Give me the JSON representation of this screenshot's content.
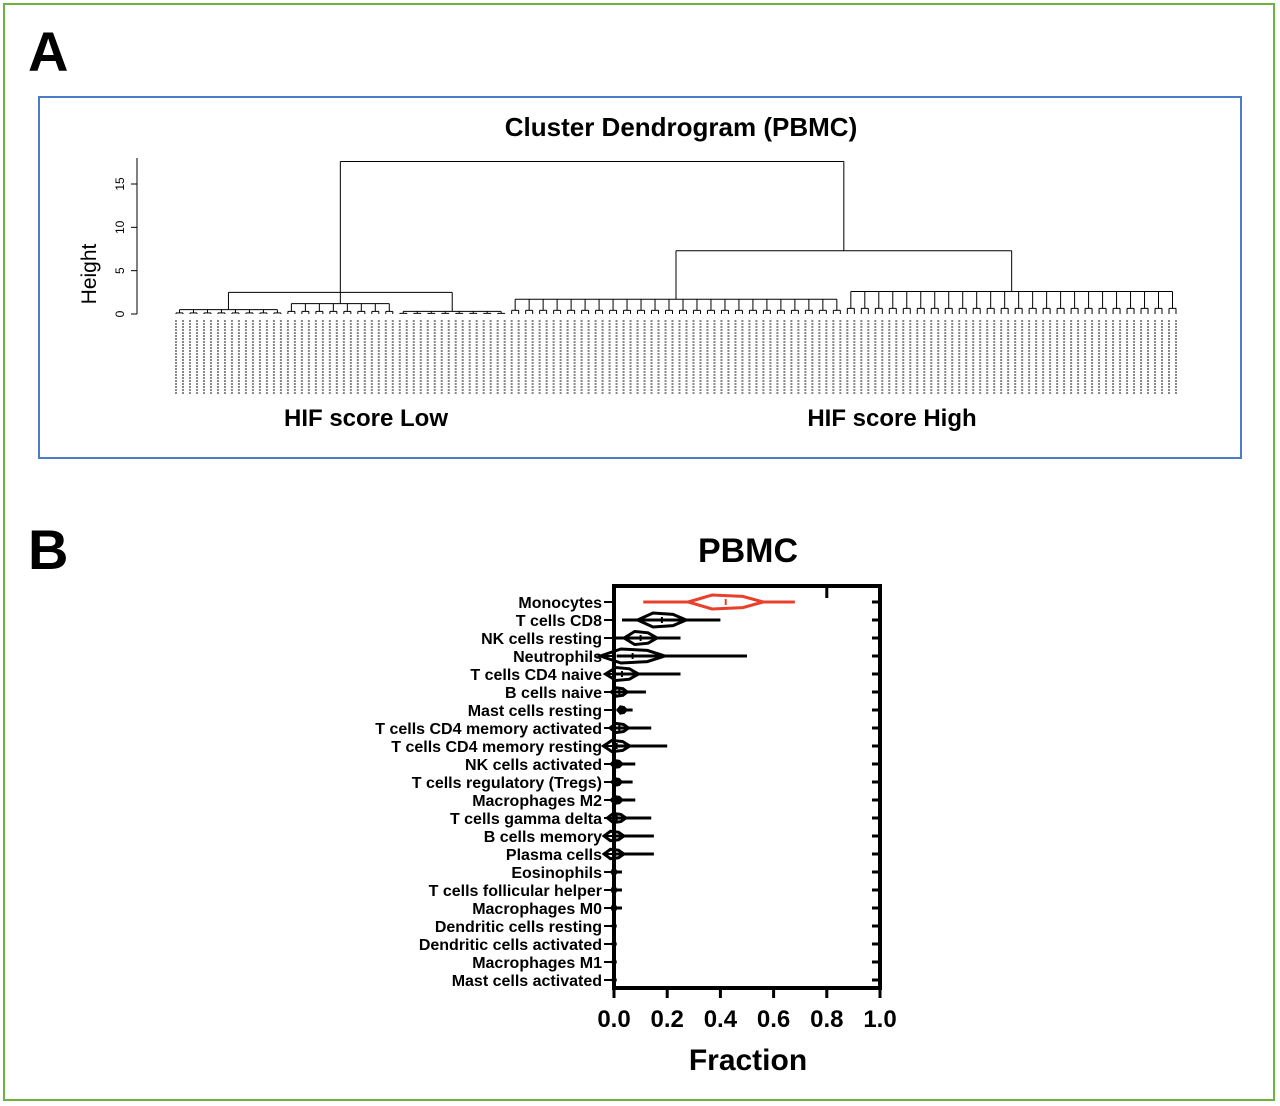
{
  "panels": {
    "a_label": "A",
    "b_label": "B"
  },
  "colors": {
    "frame": "#6db33f",
    "panel_a_border": "#4a7cc7",
    "highlight": "#e8402a",
    "ink": "#000000"
  },
  "chart_data": [
    {
      "type": "dendrogram",
      "title": "Cluster Dendrogram (PBMC)",
      "ylabel": "Height",
      "ylim": [
        0,
        18
      ],
      "yticks": [
        0,
        5,
        10,
        15
      ],
      "root_height": 17.6,
      "groups": [
        {
          "name": "HIF score Low",
          "leaf_count": 48,
          "merge_height": 2.5,
          "subclusters": [
            {
              "leaf_count": 16,
              "merge_height": 0.5
            },
            {
              "leaf_count": 16,
              "merge_height": 1.2
            },
            {
              "leaf_count": 16,
              "merge_height": 0.3
            }
          ]
        },
        {
          "name": "HIF score High",
          "leaf_count": 96,
          "merge_height": 7.3,
          "subclusters": [
            {
              "leaf_count": 48,
              "merge_height": 1.7
            },
            {
              "leaf_count": 48,
              "merge_height": 2.6
            }
          ]
        }
      ],
      "group_labels": [
        "HIF score Low",
        "HIF score High"
      ]
    },
    {
      "type": "violin",
      "title": "PBMC",
      "xlabel": "Fraction",
      "xlim": [
        0,
        1
      ],
      "xticks": [
        "0.0",
        "0.2",
        "0.4",
        "0.6",
        "0.8",
        "1.0"
      ],
      "categories": [
        "Monocytes",
        "T cells CD8",
        "NK cells resting",
        "Neutrophils",
        "T cells CD4 naive",
        "B cells naive",
        "Mast cells resting",
        "T cells CD4 memory activated",
        "T cells CD4 memory resting",
        "NK cells activated",
        "T cells regulatory (Tregs)",
        "Macrophages M2",
        "T cells gamma delta",
        "B cells memory",
        "Plasma cells",
        "Eosinophils",
        "T cells follicular helper",
        "Macrophages M0",
        "Dendritic cells resting",
        "Dendritic cells activated",
        "Macrophages M1",
        "Mast cells activated"
      ],
      "series": [
        {
          "min": 0.11,
          "max": 0.68,
          "median": 0.42,
          "highlight": true
        },
        {
          "min": 0.03,
          "max": 0.4,
          "median": 0.18
        },
        {
          "min": 0.0,
          "max": 0.25,
          "median": 0.1
        },
        {
          "min": 0.01,
          "max": 0.5,
          "median": 0.07
        },
        {
          "min": 0.0,
          "max": 0.25,
          "median": 0.03
        },
        {
          "min": 0.0,
          "max": 0.12,
          "median": 0.02
        },
        {
          "min": 0.01,
          "max": 0.07,
          "median": 0.03
        },
        {
          "min": 0.0,
          "max": 0.14,
          "median": 0.02
        },
        {
          "min": 0.0,
          "max": 0.2,
          "median": 0.01
        },
        {
          "min": 0.0,
          "max": 0.08,
          "median": 0.01
        },
        {
          "min": 0.0,
          "max": 0.07,
          "median": 0.01
        },
        {
          "min": 0.0,
          "max": 0.08,
          "median": 0.01
        },
        {
          "min": 0.0,
          "max": 0.14,
          "median": 0.01
        },
        {
          "min": 0.0,
          "max": 0.15,
          "median": 0.0
        },
        {
          "min": 0.0,
          "max": 0.15,
          "median": 0.0
        },
        {
          "min": 0.0,
          "max": 0.03,
          "median": 0.0
        },
        {
          "min": 0.0,
          "max": 0.03,
          "median": 0.0
        },
        {
          "min": 0.0,
          "max": 0.03,
          "median": 0.0
        },
        {
          "min": 0.0,
          "max": 0.01,
          "median": 0.0
        },
        {
          "min": 0.0,
          "max": 0.01,
          "median": 0.0
        },
        {
          "min": 0.0,
          "max": 0.01,
          "median": 0.0
        },
        {
          "min": 0.0,
          "max": 0.01,
          "median": 0.0
        }
      ]
    }
  ]
}
